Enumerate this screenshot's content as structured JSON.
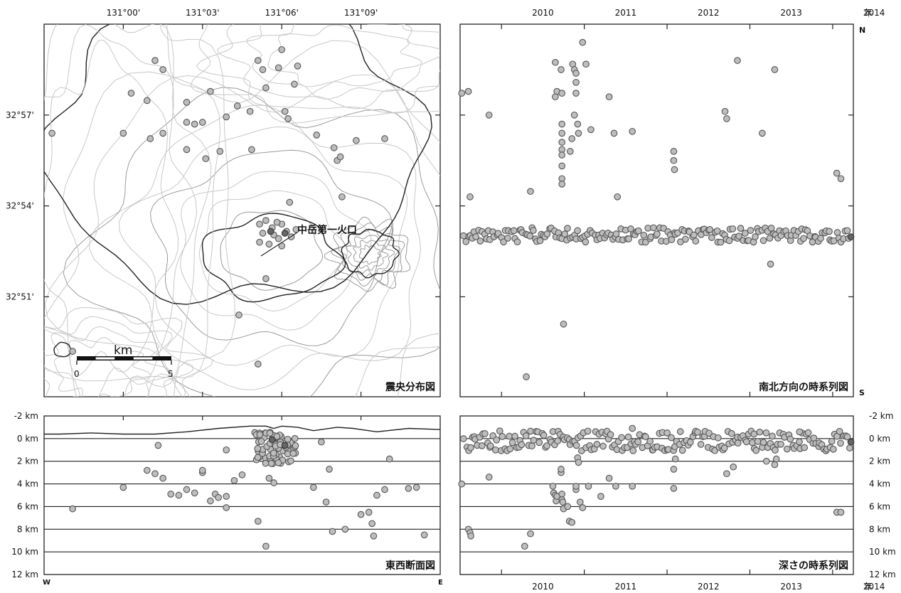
{
  "chart_data": [
    {
      "id": "epicenter",
      "type": "scatter",
      "title": "震央分布図",
      "x_ticks": [
        "131°00'",
        "131°03'",
        "131°06'",
        "131°09'"
      ],
      "y_ticks": [
        "32°57'",
        "32°54'",
        "32°51'"
      ],
      "xlim": [
        130.95,
        131.2
      ],
      "ylim": [
        32.795,
        33.0
      ],
      "annotation": "中岳第一火口",
      "scalebar": {
        "unit": "km",
        "start": "0",
        "end": "5",
        "km": 5
      },
      "points": [
        [
          131.02,
          32.98
        ],
        [
          131.025,
          32.975
        ],
        [
          131.005,
          32.962
        ],
        [
          130.955,
          32.94
        ],
        [
          131.0,
          32.94
        ],
        [
          131.015,
          32.958
        ],
        [
          131.04,
          32.957
        ],
        [
          131.04,
          32.946
        ],
        [
          131.05,
          32.946
        ],
        [
          131.055,
          32.963
        ],
        [
          131.065,
          32.949
        ],
        [
          131.072,
          32.955
        ],
        [
          131.08,
          32.952
        ],
        [
          131.085,
          32.98
        ],
        [
          131.088,
          32.975
        ],
        [
          131.09,
          32.965
        ],
        [
          131.098,
          32.976
        ],
        [
          131.1,
          32.986
        ],
        [
          131.108,
          32.967
        ],
        [
          131.11,
          32.977
        ],
        [
          131.104,
          32.948
        ],
        [
          131.102,
          32.952
        ],
        [
          131.04,
          32.931
        ],
        [
          131.052,
          32.926
        ],
        [
          131.061,
          32.93
        ],
        [
          131.081,
          32.931
        ],
        [
          131.122,
          32.939
        ],
        [
          131.133,
          32.932
        ],
        [
          131.135,
          32.925
        ],
        [
          131.137,
          32.927
        ],
        [
          131.147,
          32.936
        ],
        [
          131.165,
          32.937
        ],
        [
          131.025,
          32.94
        ],
        [
          131.045,
          32.945
        ],
        [
          131.017,
          32.937
        ],
        [
          131.138,
          32.905
        ],
        [
          131.105,
          32.902
        ],
        [
          131.086,
          32.89
        ],
        [
          131.09,
          32.892
        ],
        [
          131.094,
          32.888
        ],
        [
          131.088,
          32.885
        ],
        [
          131.095,
          32.884
        ],
        [
          131.1,
          32.89
        ],
        [
          131.103,
          32.886
        ],
        [
          131.098,
          32.882
        ],
        [
          131.092,
          32.879
        ],
        [
          131.106,
          32.883
        ],
        [
          131.1,
          32.878
        ],
        [
          131.086,
          32.88
        ],
        [
          131.109,
          32.887
        ],
        [
          131.097,
          32.891
        ],
        [
          131.09,
          32.86
        ],
        [
          131.073,
          32.84
        ],
        [
          131.085,
          32.813
        ],
        [
          130.968,
          32.82
        ]
      ],
      "dark_points": [
        [
          131.093,
          32.886
        ],
        [
          131.102,
          32.885
        ]
      ]
    },
    {
      "id": "ns-time",
      "type": "scatter",
      "title": "南北方向の時系列図",
      "x_ticks": [
        "2010",
        "2011",
        "2012",
        "2013",
        "2014",
        "年"
      ],
      "y_axis_labels": {
        "top": "N",
        "bottom": "S"
      },
      "xlim": [
        2009.5,
        2014.25
      ],
      "ylim": [
        32.795,
        33.0
      ],
      "points": [
        [
          2009.52,
          32.962
        ],
        [
          2009.6,
          32.963
        ],
        [
          2009.85,
          32.95
        ],
        [
          2009.62,
          32.905
        ],
        [
          2010.35,
          32.908
        ],
        [
          2010.65,
          32.979
        ],
        [
          2010.67,
          32.963
        ],
        [
          2010.65,
          32.96
        ],
        [
          2010.72,
          32.975
        ],
        [
          2010.73,
          32.962
        ],
        [
          2010.73,
          32.945
        ],
        [
          2010.73,
          32.94
        ],
        [
          2010.73,
          32.935
        ],
        [
          2010.73,
          32.931
        ],
        [
          2010.73,
          32.928
        ],
        [
          2010.73,
          32.922
        ],
        [
          2010.73,
          32.915
        ],
        [
          2010.73,
          32.912
        ],
        [
          2010.86,
          32.978
        ],
        [
          2010.88,
          32.975
        ],
        [
          2010.9,
          32.973
        ],
        [
          2010.9,
          32.968
        ],
        [
          2010.9,
          32.962
        ],
        [
          2010.88,
          32.95
        ],
        [
          2010.85,
          32.937
        ],
        [
          2010.83,
          32.93
        ],
        [
          2010.92,
          32.945
        ],
        [
          2010.93,
          32.94
        ],
        [
          2010.98,
          32.99
        ],
        [
          2011.02,
          32.978
        ],
        [
          2011.08,
          32.942
        ],
        [
          2011.3,
          32.96
        ],
        [
          2011.4,
          32.905
        ],
        [
          2011.58,
          32.941
        ],
        [
          2011.36,
          32.94
        ],
        [
          2012.08,
          32.93
        ],
        [
          2012.08,
          32.925
        ],
        [
          2012.09,
          32.92
        ],
        [
          2012.7,
          32.952
        ],
        [
          2012.72,
          32.948
        ],
        [
          2012.85,
          32.98
        ],
        [
          2013.15,
          32.94
        ],
        [
          2013.3,
          32.975
        ],
        [
          2014.05,
          32.918
        ],
        [
          2014.1,
          32.915
        ],
        [
          2013.25,
          32.868
        ],
        [
          2010.75,
          32.835
        ],
        [
          2010.3,
          32.806
        ]
      ],
      "dark_points": [
        [
          2014.22,
          32.883
        ]
      ],
      "band": {
        "y_center": 32.884,
        "y_spread": 0.004,
        "x_start": 2009.55,
        "x_end": 2014.22,
        "count": 190
      }
    },
    {
      "id": "ew-section",
      "type": "scatter",
      "title": "東西断面図",
      "x_axis_labels": {
        "left": "W",
        "right": "E"
      },
      "y_ticks": [
        "-2 km",
        "0 km",
        "2 km",
        "4 km",
        "6 km",
        "8 km",
        "10 km",
        "12 km"
      ],
      "xlim": [
        130.95,
        131.2
      ],
      "ylim": [
        -2,
        12
      ],
      "points": [
        [
          130.968,
          6.2
        ],
        [
          131.0,
          4.3
        ],
        [
          131.015,
          2.8
        ],
        [
          131.02,
          3.1
        ],
        [
          131.022,
          0.6
        ],
        [
          131.025,
          3.5
        ],
        [
          131.03,
          4.9
        ],
        [
          131.035,
          5.0
        ],
        [
          131.04,
          4.5
        ],
        [
          131.045,
          4.8
        ],
        [
          131.05,
          3.0
        ],
        [
          131.05,
          2.8
        ],
        [
          131.055,
          5.5
        ],
        [
          131.058,
          4.9
        ],
        [
          131.06,
          5.2
        ],
        [
          131.065,
          5.1
        ],
        [
          131.065,
          6.1
        ],
        [
          131.07,
          3.7
        ],
        [
          131.075,
          3.2
        ],
        [
          131.085,
          7.3
        ],
        [
          131.09,
          9.5
        ],
        [
          131.092,
          3.5
        ],
        [
          131.095,
          3.9
        ],
        [
          131.065,
          1.0
        ],
        [
          131.125,
          0.3
        ],
        [
          131.12,
          4.3
        ],
        [
          131.128,
          5.6
        ],
        [
          131.13,
          2.7
        ],
        [
          131.132,
          8.2
        ],
        [
          131.14,
          8.0
        ],
        [
          131.15,
          6.7
        ],
        [
          131.155,
          6.5
        ],
        [
          131.157,
          7.5
        ],
        [
          131.158,
          8.6
        ],
        [
          131.16,
          5.0
        ],
        [
          131.165,
          4.5
        ],
        [
          131.168,
          1.8
        ],
        [
          131.18,
          4.4
        ],
        [
          131.185,
          4.3
        ],
        [
          131.19,
          8.5
        ]
      ],
      "dark_points": [
        [
          131.094,
          0.1
        ],
        [
          131.102,
          0.6
        ]
      ],
      "cluster": {
        "x_center": 131.096,
        "x_spread": 0.013,
        "y_min": -0.6,
        "y_max": 2.2,
        "count": 75
      },
      "profile": [
        [
          130.95,
          -0.4
        ],
        [
          130.96,
          -0.4
        ],
        [
          130.98,
          -0.5
        ],
        [
          131.0,
          -0.4
        ],
        [
          131.02,
          -0.4
        ],
        [
          131.04,
          -0.6
        ],
        [
          131.06,
          -0.9
        ],
        [
          131.08,
          -1.1
        ],
        [
          131.09,
          -1.1
        ],
        [
          131.095,
          -0.9
        ],
        [
          131.1,
          -1.1
        ],
        [
          131.11,
          -1.0
        ],
        [
          131.12,
          -0.7
        ],
        [
          131.135,
          -1.0
        ],
        [
          131.145,
          -0.9
        ],
        [
          131.16,
          -0.6
        ],
        [
          131.18,
          -0.9
        ],
        [
          131.2,
          -0.8
        ]
      ]
    },
    {
      "id": "depth-time",
      "type": "scatter",
      "title": "深さの時系列図",
      "x_ticks": [
        "2010",
        "2011",
        "2012",
        "2013",
        "2014",
        "年"
      ],
      "y_ticks": [
        "-2 km",
        "0 km",
        "2 km",
        "4 km",
        "6 km",
        "8 km",
        "10 km",
        "12 km"
      ],
      "xlim": [
        2009.5,
        2014.25
      ],
      "ylim": [
        -2,
        12
      ],
      "points": [
        [
          2009.52,
          4.0
        ],
        [
          2009.6,
          8.0
        ],
        [
          2009.62,
          8.3
        ],
        [
          2009.63,
          8.6
        ],
        [
          2009.85,
          3.4
        ],
        [
          2010.28,
          9.5
        ],
        [
          2010.35,
          8.4
        ],
        [
          2010.62,
          4.2
        ],
        [
          2010.63,
          4.8
        ],
        [
          2010.65,
          5.0
        ],
        [
          2010.66,
          5.5
        ],
        [
          2010.67,
          5.1
        ],
        [
          2010.72,
          3.0
        ],
        [
          2010.72,
          2.7
        ],
        [
          2010.73,
          4.9
        ],
        [
          2010.73,
          5.4
        ],
        [
          2010.74,
          5.6
        ],
        [
          2010.75,
          6.2
        ],
        [
          2010.8,
          6.0
        ],
        [
          2010.82,
          7.3
        ],
        [
          2010.85,
          7.4
        ],
        [
          2010.9,
          4.5
        ],
        [
          2010.9,
          4.2
        ],
        [
          2010.92,
          1.7
        ],
        [
          2010.93,
          2.1
        ],
        [
          2010.95,
          5.6
        ],
        [
          2010.98,
          6.1
        ],
        [
          2011.05,
          4.2
        ],
        [
          2011.2,
          5.1
        ],
        [
          2011.3,
          3.5
        ],
        [
          2011.38,
          4.2
        ],
        [
          2011.58,
          4.2
        ],
        [
          2012.08,
          4.4
        ],
        [
          2012.08,
          2.7
        ],
        [
          2012.1,
          1.8
        ],
        [
          2012.72,
          3.1
        ],
        [
          2012.8,
          2.5
        ],
        [
          2013.2,
          2.0
        ],
        [
          2013.3,
          2.3
        ],
        [
          2013.32,
          1.8
        ],
        [
          2014.05,
          6.5
        ],
        [
          2014.1,
          6.5
        ],
        [
          2011.58,
          -0.9
        ],
        [
          2012.0,
          -0.5
        ],
        [
          2013.05,
          -0.4
        ],
        [
          2013.6,
          -0.6
        ]
      ],
      "dark_points": [
        [
          2014.22,
          0.3
        ]
      ],
      "band": {
        "y_center": 0.2,
        "y_spread": 0.9,
        "x_start": 2009.55,
        "x_end": 2014.22,
        "count": 200
      }
    }
  ]
}
